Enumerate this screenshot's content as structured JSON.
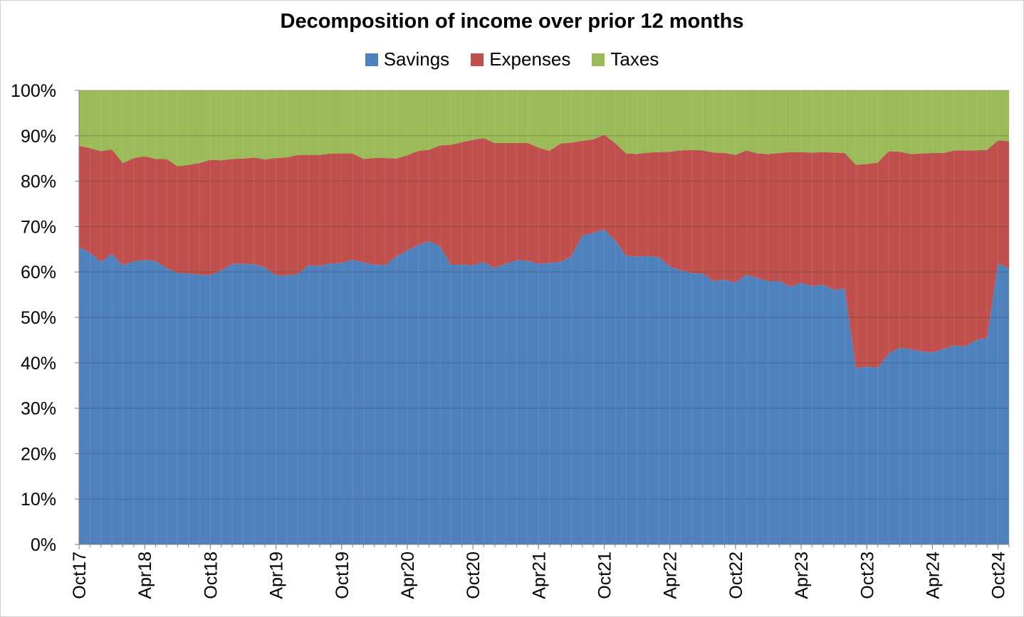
{
  "chart_data": {
    "type": "area",
    "stacked": true,
    "normalized": true,
    "title": "Decomposition of income over prior 12 months",
    "legend_position": "top",
    "ylim": [
      0,
      100
    ],
    "y_ticks": [
      "0%",
      "10%",
      "20%",
      "30%",
      "40%",
      "50%",
      "60%",
      "70%",
      "80%",
      "90%",
      "100%"
    ],
    "x_tick_labels": [
      "Oct17",
      "Apr18",
      "Oct18",
      "Apr19",
      "Oct19",
      "Apr20",
      "Oct20",
      "Apr21",
      "Oct21",
      "Apr22",
      "Oct22",
      "Apr23",
      "Oct23",
      "Apr24",
      "Oct24"
    ],
    "x_start": "2017-10",
    "x_end": "2024-10",
    "grid": true,
    "series": [
      {
        "name": "Savings",
        "color": "#4f81bd",
        "values": [
          65.5,
          64.3,
          62.2,
          64.0,
          61.5,
          62.3,
          62.7,
          62.4,
          60.9,
          59.8,
          59.7,
          59.4,
          59.3,
          60.3,
          61.8,
          61.8,
          61.7,
          61.0,
          59.3,
          59.2,
          59.6,
          61.5,
          61.3,
          61.9,
          62.0,
          62.7,
          62.1,
          61.6,
          61.5,
          63.4,
          64.7,
          65.9,
          66.8,
          65.7,
          61.6,
          61.6,
          61.5,
          62.2,
          60.9,
          61.8,
          62.6,
          62.5,
          61.8,
          62.0,
          62.2,
          63.5,
          68.0,
          68.6,
          69.4,
          67.0,
          63.6,
          63.4,
          63.5,
          63.3,
          61.2,
          60.4,
          59.7,
          59.7,
          58.0,
          58.3,
          57.7,
          59.4,
          58.7,
          58.0,
          58.0,
          56.8,
          57.6,
          56.9,
          57.2,
          56.1,
          56.3,
          38.8,
          39.2,
          38.9,
          42.0,
          43.3,
          43.0,
          42.5,
          42.3,
          43.0,
          43.8,
          43.6,
          45.0,
          45.5,
          61.9,
          60.8
        ]
      },
      {
        "name": "Expenses",
        "color": "#c0504d",
        "values": [
          22.3,
          23.0,
          24.4,
          23.0,
          22.5,
          22.8,
          22.8,
          22.5,
          24.0,
          23.5,
          23.9,
          24.6,
          25.4,
          24.3,
          23.1,
          23.2,
          23.5,
          23.8,
          25.8,
          26.0,
          26.2,
          24.3,
          24.5,
          24.2,
          24.1,
          23.4,
          22.8,
          23.5,
          23.6,
          21.6,
          21.0,
          20.8,
          20.1,
          22.2,
          26.4,
          27.0,
          27.6,
          27.3,
          27.5,
          26.6,
          25.8,
          25.9,
          25.6,
          24.7,
          26.1,
          25.0,
          20.9,
          20.6,
          20.8,
          21.4,
          22.5,
          22.6,
          22.8,
          23.1,
          25.3,
          26.4,
          27.2,
          27.1,
          28.3,
          27.9,
          28.1,
          27.4,
          27.4,
          28.0,
          28.2,
          29.6,
          28.8,
          29.4,
          29.2,
          30.2,
          29.9,
          44.8,
          44.6,
          45.2,
          44.6,
          43.2,
          43.0,
          43.6,
          43.9,
          43.2,
          43.0,
          43.2,
          41.8,
          41.4,
          27.1,
          28.0
        ]
      },
      {
        "name": "Taxes",
        "color": "#9bbb59",
        "values": [
          12.2,
          12.7,
          13.4,
          13.0,
          16.0,
          14.9,
          14.5,
          15.1,
          15.1,
          16.7,
          16.4,
          16.0,
          15.3,
          15.4,
          15.1,
          15.0,
          14.8,
          15.2,
          14.9,
          14.8,
          14.2,
          14.2,
          14.2,
          13.9,
          13.9,
          13.9,
          15.1,
          14.9,
          14.9,
          15.0,
          14.3,
          13.3,
          13.1,
          12.1,
          12.0,
          11.4,
          10.9,
          10.5,
          11.6,
          11.6,
          11.6,
          11.6,
          12.6,
          13.3,
          11.7,
          11.5,
          11.1,
          10.8,
          9.8,
          11.6,
          13.9,
          14.0,
          13.7,
          13.6,
          13.5,
          13.2,
          13.1,
          13.2,
          13.7,
          13.8,
          14.2,
          13.2,
          13.9,
          14.0,
          13.8,
          13.6,
          13.6,
          13.7,
          13.6,
          13.7,
          13.8,
          16.4,
          16.2,
          15.9,
          13.4,
          13.5,
          14.0,
          13.9,
          13.8,
          13.8,
          13.2,
          13.2,
          13.2,
          13.1,
          11.0,
          11.2
        ]
      }
    ]
  }
}
